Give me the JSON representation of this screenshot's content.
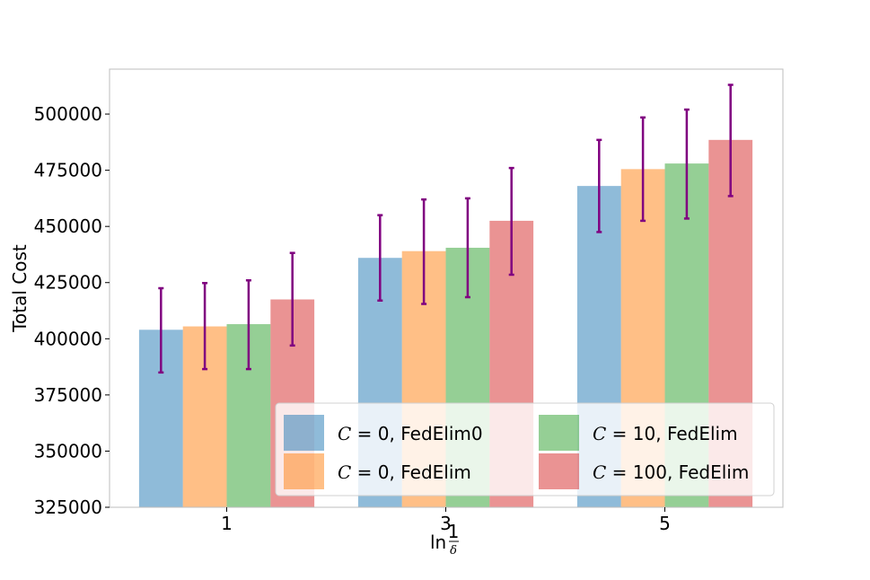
{
  "chart_data": {
    "type": "bar",
    "title": "",
    "xlabel": "ln (1/δ)",
    "xlabel_parts": {
      "prefix": "ln",
      "numerator": "1",
      "denominator": "δ"
    },
    "ylabel": "Total Cost",
    "ylim": [
      325000,
      520000
    ],
    "yticks": [
      325000,
      350000,
      375000,
      400000,
      425000,
      450000,
      475000,
      500000
    ],
    "ytick_labels": [
      "325000",
      "350000",
      "375000",
      "400000",
      "425000",
      "450000",
      "475000",
      "500000"
    ],
    "categories": [
      "1",
      "3",
      "5"
    ],
    "legend_position": "lower-right",
    "error_bar_color": "#800080",
    "series": [
      {
        "name": "C = 0, FedElim0",
        "legend_math": "C",
        "legend_rest": " = 0, FedElim0",
        "color": "#1f77b4",
        "values": [
          404000,
          436000,
          468000
        ],
        "err_low": [
          385000,
          417000,
          447500
        ],
        "err_high": [
          422500,
          455000,
          488500
        ]
      },
      {
        "name": "C = 0, FedElim",
        "legend_math": "C",
        "legend_rest": " = 0, FedElim",
        "color": "#ff7f0e",
        "values": [
          405500,
          439000,
          475500
        ],
        "err_low": [
          386500,
          415500,
          452500
        ],
        "err_high": [
          424800,
          462000,
          498500
        ]
      },
      {
        "name": "C = 10, FedElim",
        "legend_math": "C",
        "legend_rest": " = 10, FedElim",
        "color": "#2ca02c",
        "values": [
          406500,
          440500,
          478000
        ],
        "err_low": [
          386500,
          418500,
          453500
        ],
        "err_high": [
          426000,
          462500,
          502000
        ]
      },
      {
        "name": "C = 100, FedElim",
        "legend_math": "C",
        "legend_rest": " = 100, FedElim",
        "color": "#d62728",
        "values": [
          417500,
          452500,
          488500
        ],
        "err_low": [
          397000,
          428500,
          463500
        ],
        "err_high": [
          438200,
          476000,
          513000
        ]
      }
    ]
  }
}
